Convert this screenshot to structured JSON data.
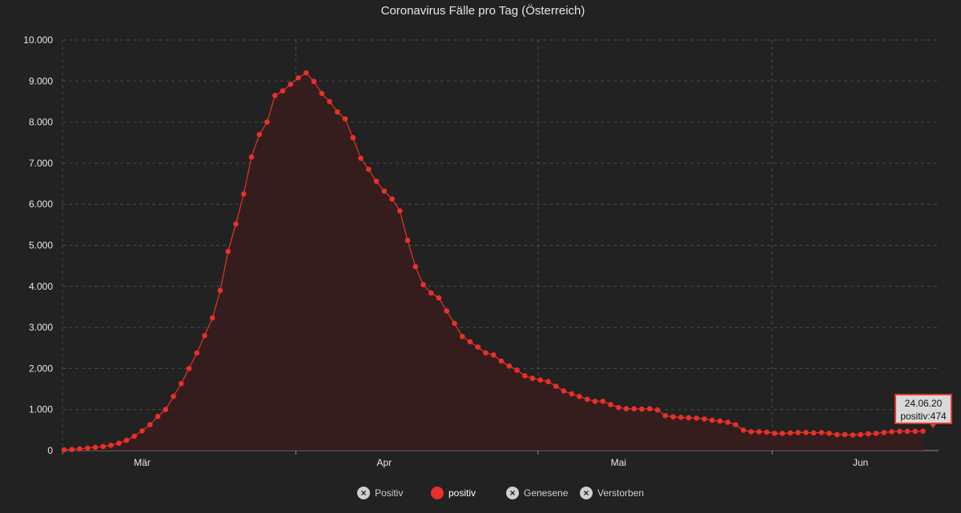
{
  "chart_data": {
    "type": "area",
    "title": "Coronavirus Fälle pro Tag (Österreich)",
    "xlabel": "",
    "ylabel": "",
    "ylim": [
      0,
      10000
    ],
    "yticks": [
      0,
      1000,
      2000,
      3000,
      4000,
      5000,
      6000,
      7000,
      8000,
      9000,
      10000
    ],
    "ytick_labels": [
      "0",
      "1.000",
      "2.000",
      "3.000",
      "4.000",
      "5.000",
      "6.000",
      "7.000",
      "8.000",
      "9.000",
      "10.000"
    ],
    "x_start": "2020-02-20",
    "x_month_ticks": [
      {
        "label": "Mär",
        "day": 10
      },
      {
        "label": "Apr",
        "day": 41
      },
      {
        "label": "Mai",
        "day": 71
      },
      {
        "label": "Jun",
        "day": 102
      }
    ],
    "x_grid_days": [
      0,
      30,
      61,
      91
    ],
    "grid": true,
    "series": [
      {
        "name": "positiv",
        "color": "#e8302a",
        "values": [
          20,
          25,
          40,
          60,
          80,
          100,
          130,
          180,
          250,
          350,
          480,
          630,
          830,
          1000,
          1320,
          1630,
          2000,
          2380,
          2800,
          3230,
          3900,
          4850,
          5520,
          6250,
          7150,
          7700,
          8000,
          8650,
          8760,
          8920,
          9080,
          9200,
          8990,
          8700,
          8500,
          8250,
          8080,
          7620,
          7120,
          6850,
          6560,
          6320,
          6130,
          5840,
          5120,
          4480,
          4040,
          3840,
          3720,
          3400,
          3100,
          2780,
          2650,
          2520,
          2380,
          2330,
          2180,
          2060,
          1960,
          1820,
          1760,
          1720,
          1680,
          1570,
          1450,
          1380,
          1320,
          1250,
          1200,
          1200,
          1120,
          1050,
          1020,
          1020,
          1010,
          1020,
          990,
          850,
          820,
          810,
          800,
          790,
          770,
          740,
          720,
          690,
          630,
          500,
          460,
          460,
          450,
          420,
          420,
          430,
          440,
          440,
          430,
          440,
          420,
          390,
          390,
          380,
          390,
          410,
          420,
          440,
          460,
          470,
          470,
          470,
          474
        ]
      }
    ],
    "tooltip": {
      "date": "24.06.20",
      "label": "positiv:474"
    },
    "legend": [
      {
        "label": "Positiv",
        "enabled": false
      },
      {
        "label": "positiv",
        "enabled": true
      },
      {
        "label": "Genesene",
        "enabled": false
      },
      {
        "label": "Verstorben",
        "enabled": false
      }
    ]
  }
}
